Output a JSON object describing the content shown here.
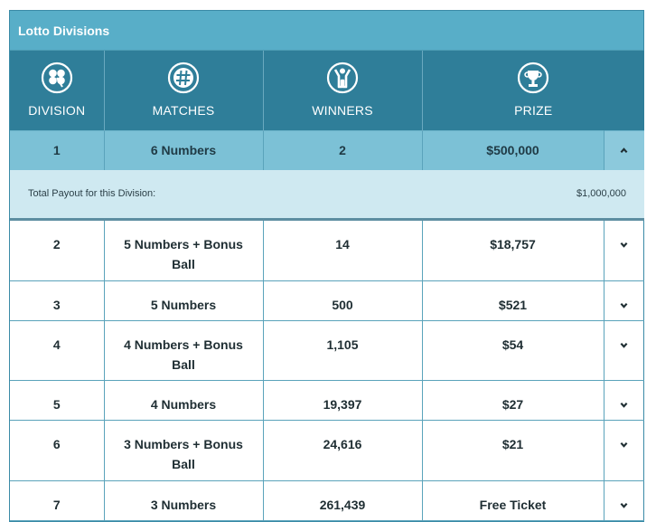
{
  "panel_title": "Lotto Divisions",
  "headers": {
    "division": "DIVISION",
    "matches": "MATCHES",
    "winners": "WINNERS",
    "prize": "PRIZE"
  },
  "icons": {
    "division": "clover-icon",
    "matches": "hash-icon",
    "winners": "winner-person-icon",
    "prize": "trophy-icon",
    "collapse": "chevron-up-icon",
    "expand": "chevron-down-icon"
  },
  "colors": {
    "title_bar": "#58aec8",
    "header": "#2f7e99",
    "active_row": "#7cc1d6",
    "detail_row": "#cfe9f1",
    "border": "#5aa3bb"
  },
  "expanded": {
    "division": "1",
    "matches": "6 Numbers",
    "winners": "2",
    "prize": "$500,000",
    "detail_label": "Total Payout for this Division:",
    "detail_value": "$1,000,000"
  },
  "rows": [
    {
      "division": "2",
      "matches_line1": "5 Numbers + Bonus",
      "matches_line2": "Ball",
      "winners": "14",
      "prize": "$18,757"
    },
    {
      "division": "3",
      "matches_line1": "5 Numbers",
      "matches_line2": "",
      "winners": "500",
      "prize": "$521"
    },
    {
      "division": "4",
      "matches_line1": "4 Numbers + Bonus",
      "matches_line2": "Ball",
      "winners": "1,105",
      "prize": "$54"
    },
    {
      "division": "5",
      "matches_line1": "4 Numbers",
      "matches_line2": "",
      "winners": "19,397",
      "prize": "$27"
    },
    {
      "division": "6",
      "matches_line1": "3 Numbers + Bonus",
      "matches_line2": "Ball",
      "winners": "24,616",
      "prize": "$21"
    },
    {
      "division": "7",
      "matches_line1": "3 Numbers",
      "matches_line2": "",
      "winners": "261,439",
      "prize": "Free Ticket"
    }
  ]
}
